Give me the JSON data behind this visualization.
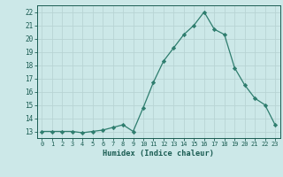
{
  "x": [
    0,
    1,
    2,
    3,
    4,
    5,
    6,
    7,
    8,
    9,
    10,
    11,
    12,
    13,
    14,
    15,
    16,
    17,
    18,
    19,
    20,
    21,
    22,
    23
  ],
  "y": [
    13.0,
    13.0,
    13.0,
    13.0,
    12.9,
    13.0,
    13.1,
    13.3,
    13.5,
    13.0,
    14.8,
    16.7,
    18.3,
    19.3,
    20.3,
    21.0,
    22.0,
    20.7,
    20.3,
    17.8,
    16.5,
    15.5,
    15.0,
    13.5
  ],
  "xlabel": "Humidex (Indice chaleur)",
  "ylim": [
    12.5,
    22.5
  ],
  "xlim": [
    -0.5,
    23.5
  ],
  "yticks": [
    13,
    14,
    15,
    16,
    17,
    18,
    19,
    20,
    21,
    22
  ],
  "xticks": [
    0,
    1,
    2,
    3,
    4,
    5,
    6,
    7,
    8,
    9,
    10,
    11,
    12,
    13,
    14,
    15,
    16,
    17,
    18,
    19,
    20,
    21,
    22,
    23
  ],
  "line_color": "#2e7d6e",
  "marker_color": "#2e7d6e",
  "bg_color": "#cce8e8",
  "grid_color": "#b8d4d4",
  "axis_label_color": "#1a5c52",
  "tick_color": "#1a5c52"
}
